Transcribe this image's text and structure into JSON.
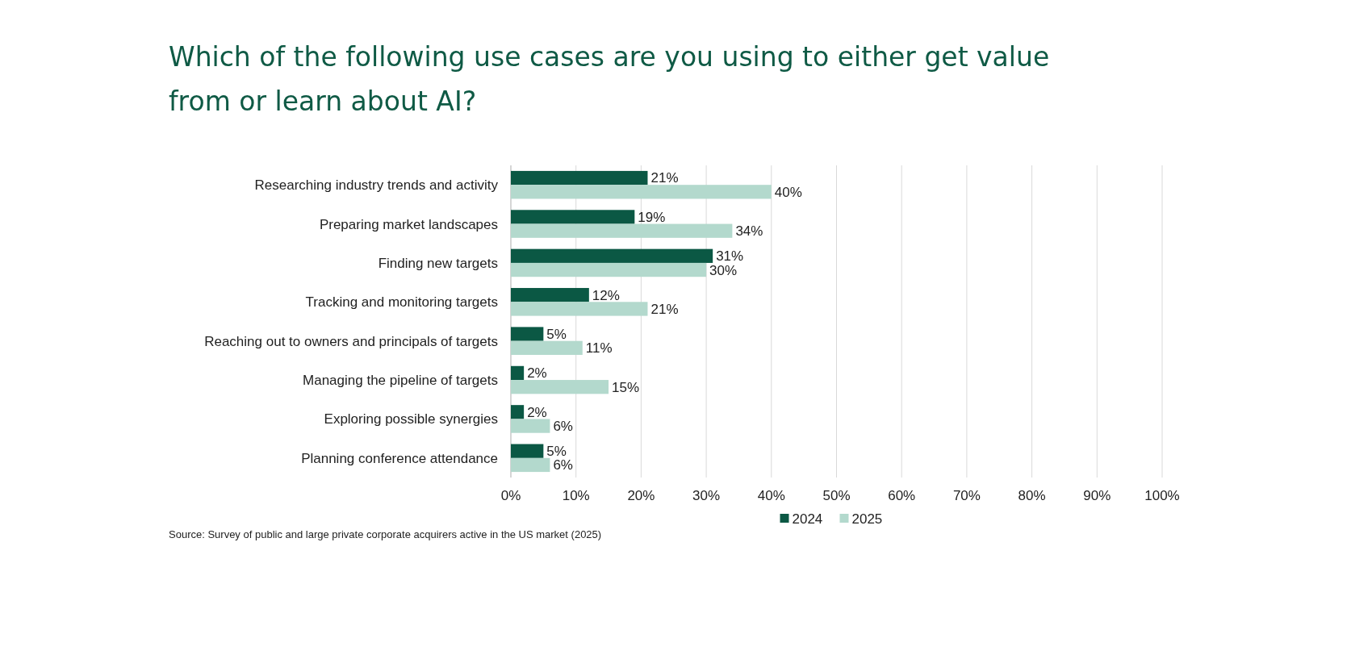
{
  "chart_data": {
    "type": "bar",
    "orientation": "horizontal",
    "title": "Which of the following use cases are you using to either get value from or learn about AI?",
    "categories": [
      "Researching industry trends and activity",
      "Preparing market landscapes",
      "Finding new targets",
      "Tracking and monitoring targets",
      "Reaching out to owners and principals of targets",
      "Managing the pipeline of targets",
      "Exploring possible synergies",
      "Planning conference attendance"
    ],
    "series": [
      {
        "name": "2024",
        "color": "#0b5844",
        "values": [
          21,
          19,
          31,
          12,
          5,
          2,
          2,
          5
        ],
        "value_labels": [
          "21%",
          "19%",
          "31%",
          "12%",
          "5%",
          "2%",
          "2%",
          "5%"
        ]
      },
      {
        "name": "2025",
        "color": "#b3d9cd",
        "values": [
          40,
          34,
          30,
          21,
          11,
          15,
          6,
          6
        ],
        "value_labels": [
          "40%",
          "34%",
          "30%",
          "21%",
          "11%",
          "15%",
          "6%",
          "6%"
        ]
      }
    ],
    "xlim": [
      0,
      100
    ],
    "xticks": [
      {
        "value": 0,
        "label": "0%"
      },
      {
        "value": 10,
        "label": "10%"
      },
      {
        "value": 20,
        "label": "20%"
      },
      {
        "value": 30,
        "label": "30%"
      },
      {
        "value": 40,
        "label": "40%"
      },
      {
        "value": 50,
        "label": "50%"
      },
      {
        "value": 60,
        "label": "60%"
      },
      {
        "value": 70,
        "label": "70%"
      },
      {
        "value": 80,
        "label": "80%"
      },
      {
        "value": 90,
        "label": "90%"
      },
      {
        "value": 100,
        "label": "100%"
      }
    ],
    "grid": "x",
    "legend": "bottom",
    "annotations": [
      "Source: Survey of public and large private corporate acquirers active in the US market (2025)"
    ]
  }
}
